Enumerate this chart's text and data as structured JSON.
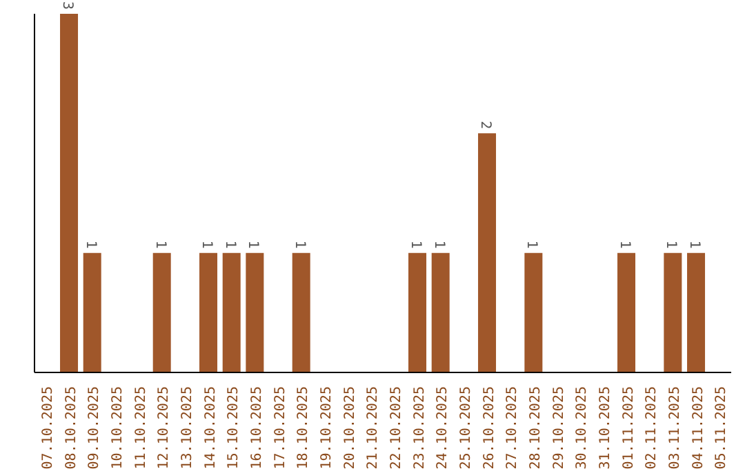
{
  "chart_data": {
    "type": "bar",
    "categories": [
      "07.10.2025",
      "08.10.2025",
      "09.10.2025",
      "10.10.2025",
      "11.10.2025",
      "12.10.2025",
      "13.10.2025",
      "14.10.2025",
      "15.10.2025",
      "16.10.2025",
      "17.10.2025",
      "18.10.2025",
      "19.10.2025",
      "20.10.2025",
      "21.10.2025",
      "22.10.2025",
      "23.10.2025",
      "24.10.2025",
      "25.10.2025",
      "26.10.2025",
      "27.10.2025",
      "28.10.2025",
      "29.10.2025",
      "30.10.2025",
      "31.10.2025",
      "01.11.2025",
      "02.11.2025",
      "03.11.2025",
      "04.11.2025",
      "05.11.2025"
    ],
    "values": [
      0,
      3,
      1,
      0,
      0,
      1,
      0,
      1,
      1,
      1,
      0,
      1,
      0,
      0,
      0,
      0,
      1,
      1,
      0,
      2,
      0,
      1,
      0,
      0,
      0,
      1,
      0,
      1,
      1,
      0
    ],
    "value_labels": [
      null,
      "3",
      "1",
      null,
      null,
      "1",
      null,
      "1",
      "1",
      "1",
      null,
      "1",
      null,
      null,
      null,
      null,
      "1",
      "1",
      null,
      "2",
      null,
      "1",
      null,
      null,
      null,
      "1",
      null,
      "1",
      "1",
      null
    ],
    "color": "#a0572a",
    "ylim": [
      0,
      3
    ],
    "tick_labels": "x"
  }
}
